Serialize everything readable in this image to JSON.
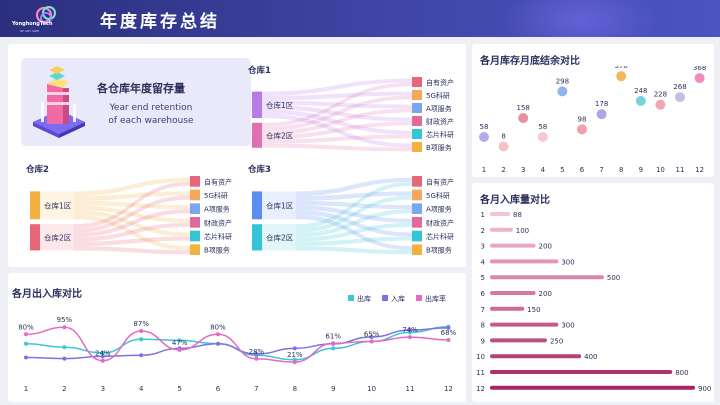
{
  "header": {
    "title": "年度库存总结",
    "logo_text": "YonghongTech",
    "logo_sub": "OF ANY SIDE"
  },
  "retention": {
    "title": "各仓库年度留存量",
    "subtitle_line1": "Year end retention",
    "subtitle_line2": "of each warehouse"
  },
  "warehouses": [
    {
      "name": "仓库1",
      "zones": [
        "仓库1区",
        "仓库2区"
      ],
      "categories": [
        "自有资产",
        "5G科研",
        "A项服务",
        "财政资产",
        "芯片科研",
        "B项服务"
      ]
    },
    {
      "name": "仓库2",
      "zones": [
        "仓库1区",
        "仓库2区"
      ],
      "categories": [
        "自有资产",
        "5G科研",
        "A项服务",
        "财政资产",
        "芯片科研",
        "B项服务"
      ]
    },
    {
      "name": "仓库3",
      "zones": [
        "仓库1区",
        "仓库2区"
      ],
      "categories": [
        "自有资产",
        "5G科研",
        "A项服务",
        "财政资产",
        "芯片科研",
        "B项服务"
      ]
    }
  ],
  "colors": {
    "accent": "#3f46a6",
    "cat": [
      "#e8667a",
      "#f5a85b",
      "#7aa6f0",
      "#e06a9b",
      "#35c3d6",
      "#f3b23f"
    ]
  },
  "balance_chart": {
    "title": "各月库存月底结余对比"
  },
  "inbound_chart": {
    "title": "各月入库量对比"
  },
  "flow_chart": {
    "title": "各月出入库对比",
    "legend": [
      "出库",
      "入库",
      "出库率"
    ]
  },
  "chart_data": [
    {
      "type": "scatter",
      "title": "各月库存月底结余对比",
      "categories": [
        "1",
        "2",
        "3",
        "4",
        "5",
        "6",
        "7",
        "8",
        "9",
        "10",
        "11",
        "12"
      ],
      "values": [
        58,
        8,
        158,
        58,
        298,
        98,
        178,
        378,
        248,
        228,
        268,
        368
      ],
      "ylim": [
        0,
        400
      ]
    },
    {
      "type": "bar",
      "title": "各月入库量对比",
      "categories": [
        "1",
        "2",
        "3",
        "4",
        "5",
        "6",
        "7",
        "8",
        "9",
        "10",
        "11",
        "12"
      ],
      "values": [
        88,
        100,
        200,
        300,
        500,
        200,
        150,
        300,
        250,
        400,
        800,
        900
      ],
      "xlim": [
        0,
        900
      ]
    },
    {
      "type": "line",
      "title": "各月出入库对比",
      "categories": [
        "1",
        "2",
        "3",
        "4",
        "5",
        "6",
        "7",
        "8",
        "9",
        "10",
        "11",
        "12"
      ],
      "series": [
        {
          "name": "出库",
          "values": [
            30,
            27,
            22,
            34,
            33,
            30,
            20,
            16,
            26,
            32,
            40,
            45
          ]
        },
        {
          "name": "入库",
          "values": [
            18,
            17,
            19,
            20,
            26,
            30,
            21,
            26,
            30,
            36,
            42,
            44
          ]
        },
        {
          "name": "出库率",
          "values": [
            80,
            95,
            24,
            87,
            47,
            80,
            28,
            21,
            61,
            65,
            74,
            68
          ],
          "labels": [
            "80%",
            "95%",
            "24%",
            "87%",
            "47%",
            "80%",
            "28%",
            "21%",
            "61%",
            "65%",
            "74%",
            "68%"
          ]
        }
      ]
    }
  ]
}
